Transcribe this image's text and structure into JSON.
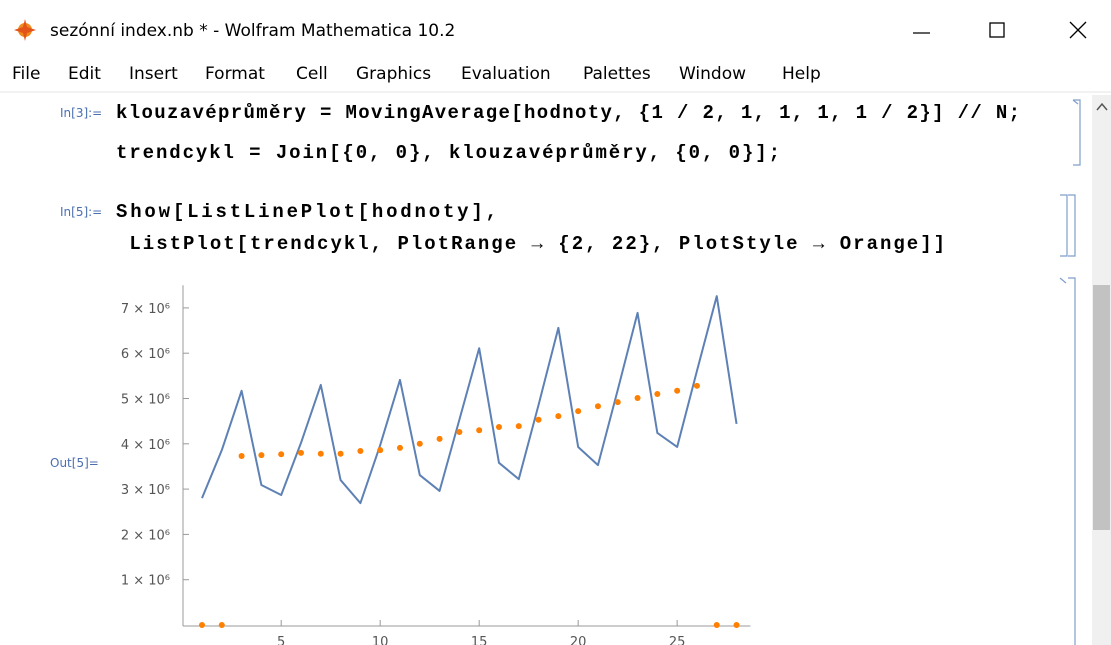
{
  "window": {
    "title": "sezónní index.nb * - Wolfram Mathematica 10.2"
  },
  "menu": [
    "File",
    "Edit",
    "Insert",
    "Format",
    "Cell",
    "Graphics",
    "Evaluation",
    "Palettes",
    "Window",
    "Help"
  ],
  "cells": [
    {
      "label": "In[3]:=",
      "lines": [
        "klouzavéprůměry = MovingAverage[hodnoty, {1 / 2, 1, 1, 1, 1 / 2}] // N;",
        "trendcykl = Join[{0, 0}, klouzavéprůměry, {0, 0}];"
      ]
    },
    {
      "label": "In[5]:=",
      "lines": [
        "Show[ListLinePlot[hodnoty],",
        " ListPlot[trendcykl, PlotRange → {2, 22}, PlotStyle → Orange]]"
      ]
    }
  ],
  "output": {
    "label": "Out[5]=",
    "chart_data": {
      "type": "line",
      "x": [
        1,
        2,
        3,
        4,
        5,
        6,
        7,
        8,
        9,
        10,
        11,
        12,
        13,
        14,
        15,
        16,
        17,
        18,
        19,
        20,
        21,
        22,
        23,
        24,
        25,
        26,
        27,
        28
      ],
      "series": [
        {
          "style": "line",
          "color": "#5e81b5",
          "values": [
            2800000,
            3860000,
            5170000,
            3090000,
            2870000,
            4020000,
            5300000,
            3200000,
            2690000,
            3970000,
            5410000,
            3310000,
            2960000,
            4530000,
            6110000,
            3580000,
            3220000,
            4860000,
            6560000,
            3930000,
            3530000,
            5190000,
            6890000,
            4240000,
            3930000,
            5610000,
            7260000,
            4440000
          ]
        },
        {
          "style": "points",
          "color": "#ff7f00",
          "values": [
            0,
            0,
            3730000,
            3750000,
            3770000,
            3800000,
            3780000,
            3780000,
            3840000,
            3860000,
            3910000,
            4000000,
            4110000,
            4260000,
            4300000,
            4370000,
            4390000,
            4530000,
            4610000,
            4720000,
            4830000,
            4920000,
            5010000,
            5100000,
            5170000,
            5280000,
            0,
            0
          ]
        }
      ],
      "xlim": [
        0,
        28.7
      ],
      "ylim": [
        0,
        7500000
      ],
      "xticks": [
        5,
        10,
        15,
        20,
        25
      ],
      "yticks": [
        {
          "value": 1000000,
          "label": "1 × 10⁶"
        },
        {
          "value": 2000000,
          "label": "2 × 10⁶"
        },
        {
          "value": 3000000,
          "label": "3 × 10⁶"
        },
        {
          "value": 4000000,
          "label": "4 × 10⁶"
        },
        {
          "value": 5000000,
          "label": "5 × 10⁶"
        },
        {
          "value": 6000000,
          "label": "6 × 10⁶"
        },
        {
          "value": 7000000,
          "label": "7 × 10⁶"
        }
      ]
    }
  }
}
